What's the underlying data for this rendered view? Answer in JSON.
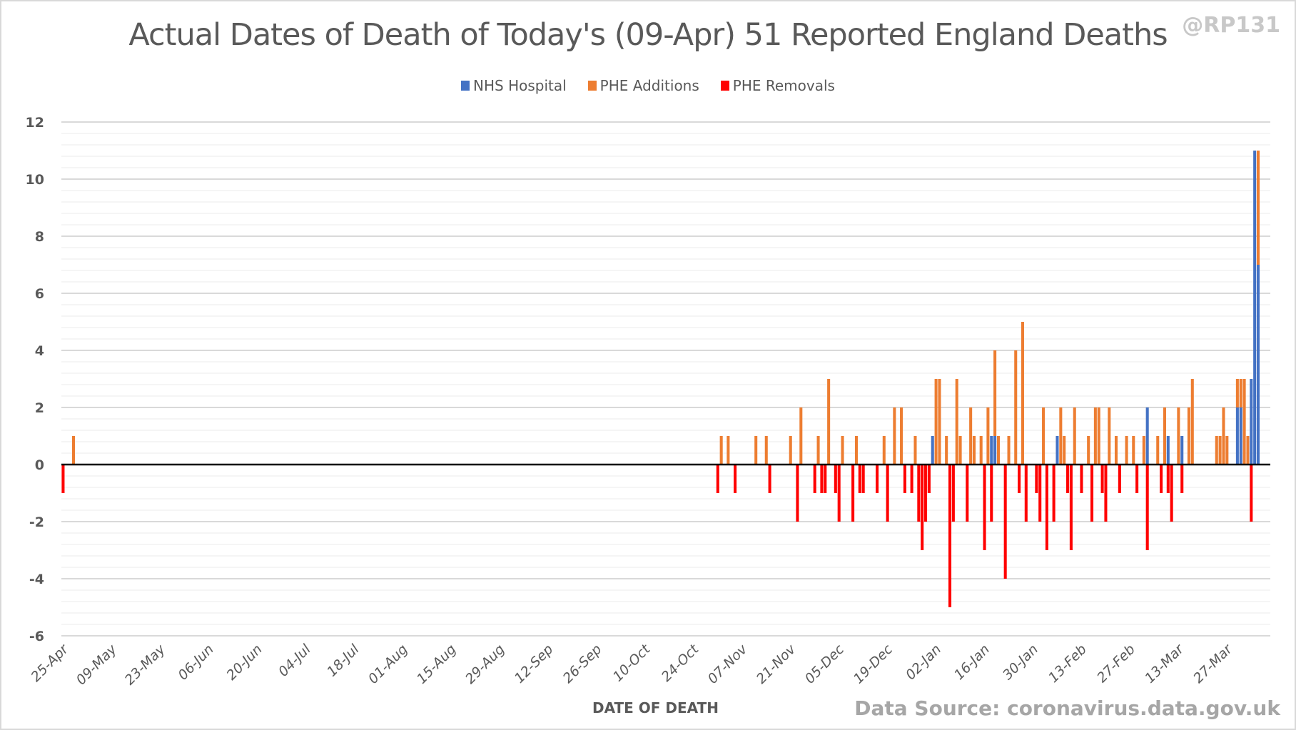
{
  "chart_data": {
    "type": "bar",
    "stacked": true,
    "title": "Actual Dates of Death of Today's (09-Apr) 51 Reported England Deaths",
    "watermark": "@RP131",
    "source": "Data Source: coronavirus.data.gov.uk",
    "xlabel": "DATE OF DEATH",
    "ylabel": "",
    "ylim": [
      -6,
      12
    ],
    "y_major_step": 2,
    "y_minor_step": 0.4,
    "grid": true,
    "legend_position": "top-center",
    "start_date": "2020-04-25",
    "num_days": 348,
    "yticks": [
      "12",
      "10",
      "8",
      "6",
      "4",
      "2",
      "0",
      "-2",
      "-4",
      "-6"
    ],
    "ytick_values": [
      12,
      10,
      8,
      6,
      4,
      2,
      0,
      -2,
      -4,
      -6
    ],
    "xtick_labels": [
      "25-Apr",
      "09-May",
      "23-May",
      "06-Jun",
      "20-Jun",
      "04-Jul",
      "18-Jul",
      "01-Aug",
      "15-Aug",
      "29-Aug",
      "12-Sep",
      "26-Sep",
      "10-Oct",
      "24-Oct",
      "07-Nov",
      "21-Nov",
      "05-Dec",
      "19-Dec",
      "02-Jan",
      "16-Jan",
      "30-Jan",
      "13-Feb",
      "27-Feb",
      "13-Mar",
      "27-Mar"
    ],
    "xtick_step_days": 14,
    "series": [
      {
        "name": "NHS Hospital",
        "color": "#4472c4",
        "points": [
          {
            "date": "01-Jan",
            "value": 1
          },
          {
            "date": "18-Jan",
            "value": 1
          },
          {
            "date": "19-Jan",
            "value": 1
          },
          {
            "date": "06-Feb",
            "value": 1
          },
          {
            "date": "04-Mar",
            "value": 2
          },
          {
            "date": "10-Mar",
            "value": 1
          },
          {
            "date": "14-Mar",
            "value": 1
          },
          {
            "date": "30-Mar",
            "value": 2
          },
          {
            "date": "31-Mar",
            "value": 2
          },
          {
            "date": "03-Apr",
            "value": 3
          },
          {
            "date": "04-Apr",
            "value": 11
          },
          {
            "date": "05-Apr",
            "value": 7
          }
        ]
      },
      {
        "name": "PHE Additions",
        "color": "#ed7d31",
        "points": [
          {
            "date": "28-Apr",
            "value": 1
          },
          {
            "date": "01-Nov",
            "value": 1
          },
          {
            "date": "03-Nov",
            "value": 1
          },
          {
            "date": "11-Nov",
            "value": 1
          },
          {
            "date": "14-Nov",
            "value": 1
          },
          {
            "date": "21-Nov",
            "value": 1
          },
          {
            "date": "24-Nov",
            "value": 2
          },
          {
            "date": "29-Nov",
            "value": 1
          },
          {
            "date": "02-Dec",
            "value": 3
          },
          {
            "date": "06-Dec",
            "value": 1
          },
          {
            "date": "10-Dec",
            "value": 1
          },
          {
            "date": "18-Dec",
            "value": 1
          },
          {
            "date": "21-Dec",
            "value": 2
          },
          {
            "date": "23-Dec",
            "value": 2
          },
          {
            "date": "27-Dec",
            "value": 1
          },
          {
            "date": "02-Jan",
            "value": 3
          },
          {
            "date": "03-Jan",
            "value": 3
          },
          {
            "date": "05-Jan",
            "value": 1
          },
          {
            "date": "08-Jan",
            "value": 3
          },
          {
            "date": "09-Jan",
            "value": 1
          },
          {
            "date": "12-Jan",
            "value": 2
          },
          {
            "date": "13-Jan",
            "value": 1
          },
          {
            "date": "15-Jan",
            "value": 1
          },
          {
            "date": "17-Jan",
            "value": 2
          },
          {
            "date": "19-Jan",
            "value": 3
          },
          {
            "date": "20-Jan",
            "value": 1
          },
          {
            "date": "23-Jan",
            "value": 1
          },
          {
            "date": "25-Jan",
            "value": 4
          },
          {
            "date": "27-Jan",
            "value": 5
          },
          {
            "date": "02-Feb",
            "value": 2
          },
          {
            "date": "07-Feb",
            "value": 2
          },
          {
            "date": "08-Feb",
            "value": 1
          },
          {
            "date": "11-Feb",
            "value": 2
          },
          {
            "date": "15-Feb",
            "value": 1
          },
          {
            "date": "17-Feb",
            "value": 2
          },
          {
            "date": "18-Feb",
            "value": 2
          },
          {
            "date": "21-Feb",
            "value": 2
          },
          {
            "date": "23-Feb",
            "value": 1
          },
          {
            "date": "26-Feb",
            "value": 1
          },
          {
            "date": "28-Feb",
            "value": 1
          },
          {
            "date": "03-Mar",
            "value": 1
          },
          {
            "date": "07-Mar",
            "value": 1
          },
          {
            "date": "09-Mar",
            "value": 2
          },
          {
            "date": "13-Mar",
            "value": 2
          },
          {
            "date": "16-Mar",
            "value": 2
          },
          {
            "date": "17-Mar",
            "value": 3
          },
          {
            "date": "24-Mar",
            "value": 1
          },
          {
            "date": "25-Mar",
            "value": 1
          },
          {
            "date": "26-Mar",
            "value": 2
          },
          {
            "date": "27-Mar",
            "value": 1
          },
          {
            "date": "30-Mar",
            "value": 1
          },
          {
            "date": "31-Mar",
            "value": 1
          },
          {
            "date": "01-Apr",
            "value": 3
          },
          {
            "date": "02-Apr",
            "value": 1
          },
          {
            "date": "05-Apr",
            "value": 4
          }
        ]
      },
      {
        "name": "PHE Removals",
        "color": "#ff0000",
        "points": [
          {
            "date": "25-Apr",
            "value": -1
          },
          {
            "date": "31-Oct",
            "value": -1
          },
          {
            "date": "05-Nov",
            "value": -1
          },
          {
            "date": "15-Nov",
            "value": -1
          },
          {
            "date": "23-Nov",
            "value": -2
          },
          {
            "date": "28-Nov",
            "value": -1
          },
          {
            "date": "30-Nov",
            "value": -1
          },
          {
            "date": "01-Dec",
            "value": -1
          },
          {
            "date": "04-Dec",
            "value": -1
          },
          {
            "date": "05-Dec",
            "value": -2
          },
          {
            "date": "09-Dec",
            "value": -2
          },
          {
            "date": "11-Dec",
            "value": -1
          },
          {
            "date": "12-Dec",
            "value": -1
          },
          {
            "date": "16-Dec",
            "value": -1
          },
          {
            "date": "19-Dec",
            "value": -2
          },
          {
            "date": "24-Dec",
            "value": -1
          },
          {
            "date": "26-Dec",
            "value": -1
          },
          {
            "date": "28-Dec",
            "value": -2
          },
          {
            "date": "29-Dec",
            "value": -3
          },
          {
            "date": "30-Dec",
            "value": -2
          },
          {
            "date": "31-Dec",
            "value": -1
          },
          {
            "date": "06-Jan",
            "value": -5
          },
          {
            "date": "07-Jan",
            "value": -2
          },
          {
            "date": "11-Jan",
            "value": -2
          },
          {
            "date": "16-Jan",
            "value": -3
          },
          {
            "date": "18-Jan",
            "value": -2
          },
          {
            "date": "22-Jan",
            "value": -4
          },
          {
            "date": "26-Jan",
            "value": -1
          },
          {
            "date": "28-Jan",
            "value": -2
          },
          {
            "date": "31-Jan",
            "value": -1
          },
          {
            "date": "01-Feb",
            "value": -2
          },
          {
            "date": "03-Feb",
            "value": -3
          },
          {
            "date": "05-Feb",
            "value": -2
          },
          {
            "date": "09-Feb",
            "value": -1
          },
          {
            "date": "10-Feb",
            "value": -3
          },
          {
            "date": "13-Feb",
            "value": -1
          },
          {
            "date": "16-Feb",
            "value": -2
          },
          {
            "date": "19-Feb",
            "value": -1
          },
          {
            "date": "20-Feb",
            "value": -2
          },
          {
            "date": "24-Feb",
            "value": -1
          },
          {
            "date": "01-Mar",
            "value": -1
          },
          {
            "date": "04-Mar",
            "value": -3
          },
          {
            "date": "08-Mar",
            "value": -1
          },
          {
            "date": "10-Mar",
            "value": -1
          },
          {
            "date": "11-Mar",
            "value": -2
          },
          {
            "date": "14-Mar",
            "value": -1
          },
          {
            "date": "03-Apr",
            "value": -2
          }
        ]
      }
    ]
  }
}
